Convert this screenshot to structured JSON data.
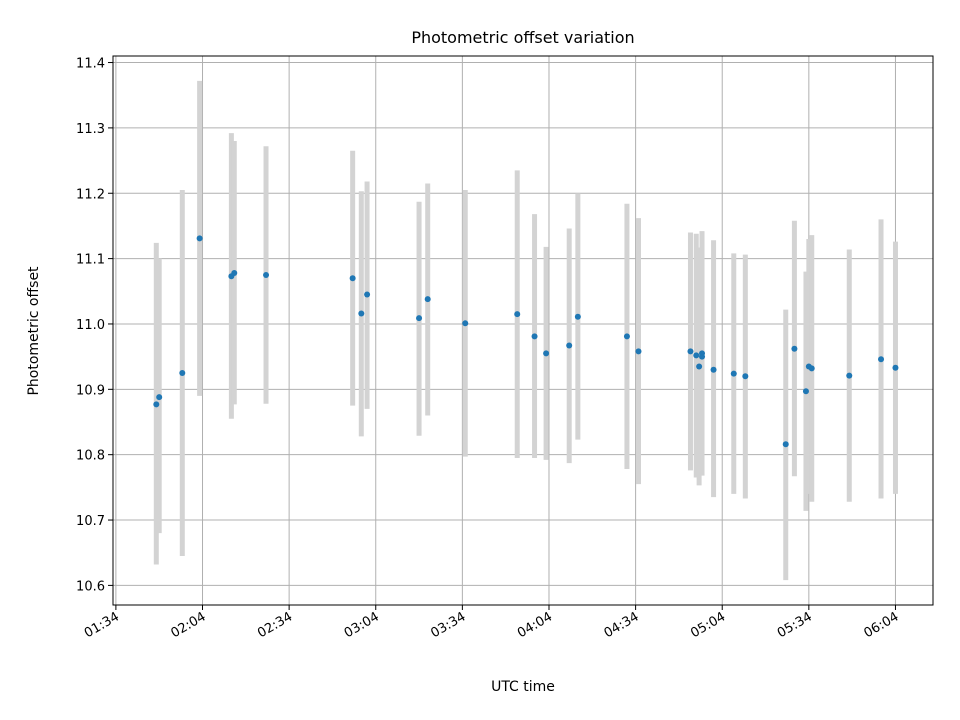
{
  "chart_data": {
    "type": "scatter",
    "title": "Photometric offset variation",
    "xlabel": "UTC time",
    "ylabel": "Photometric offset",
    "x_ticks": [
      "01:34",
      "02:04",
      "02:34",
      "03:04",
      "03:34",
      "04:04",
      "04:34",
      "05:04",
      "05:34",
      "06:04"
    ],
    "y_ticks": [
      10.6,
      10.7,
      10.8,
      10.9,
      11.0,
      11.1,
      11.2,
      11.3,
      11.4
    ],
    "xlim": [
      "01:33",
      "06:17"
    ],
    "ylim": [
      10.57,
      11.41
    ],
    "grid": true,
    "colors": {
      "point": "#1f77b4",
      "errorbar": "#d3d3d3"
    },
    "points": [
      {
        "t": "01:48",
        "y": 10.877,
        "lo": 10.632,
        "hi": 11.124
      },
      {
        "t": "01:49",
        "y": 10.888,
        "lo": 10.68,
        "hi": 11.1
      },
      {
        "t": "01:57",
        "y": 10.925,
        "lo": 10.645,
        "hi": 11.205
      },
      {
        "t": "02:03",
        "y": 11.131,
        "lo": 10.89,
        "hi": 11.372
      },
      {
        "t": "02:14",
        "y": 11.073,
        "lo": 10.855,
        "hi": 11.292
      },
      {
        "t": "02:15",
        "y": 11.078,
        "lo": 10.877,
        "hi": 11.28
      },
      {
        "t": "02:26",
        "y": 11.075,
        "lo": 10.878,
        "hi": 11.272
      },
      {
        "t": "02:56",
        "y": 11.07,
        "lo": 10.875,
        "hi": 11.265
      },
      {
        "t": "02:59",
        "y": 11.016,
        "lo": 10.828,
        "hi": 11.203
      },
      {
        "t": "03:01",
        "y": 11.045,
        "lo": 10.87,
        "hi": 11.218
      },
      {
        "t": "03:19",
        "y": 11.009,
        "lo": 10.829,
        "hi": 11.187
      },
      {
        "t": "03:22",
        "y": 11.038,
        "lo": 10.86,
        "hi": 11.215
      },
      {
        "t": "03:35",
        "y": 11.001,
        "lo": 10.797,
        "hi": 11.205
      },
      {
        "t": "03:53",
        "y": 11.015,
        "lo": 10.795,
        "hi": 11.235
      },
      {
        "t": "03:59",
        "y": 10.981,
        "lo": 10.795,
        "hi": 11.168
      },
      {
        "t": "04:03",
        "y": 10.955,
        "lo": 10.792,
        "hi": 11.118
      },
      {
        "t": "04:11",
        "y": 10.967,
        "lo": 10.787,
        "hi": 11.146
      },
      {
        "t": "04:14",
        "y": 11.011,
        "lo": 10.823,
        "hi": 11.2
      },
      {
        "t": "04:31",
        "y": 10.981,
        "lo": 10.778,
        "hi": 11.184
      },
      {
        "t": "04:35",
        "y": 10.958,
        "lo": 10.755,
        "hi": 11.162
      },
      {
        "t": "04:53",
        "y": 10.958,
        "lo": 10.776,
        "hi": 11.14
      },
      {
        "t": "04:55",
        "y": 10.952,
        "lo": 10.765,
        "hi": 11.138
      },
      {
        "t": "04:56",
        "y": 10.935,
        "lo": 10.753,
        "hi": 11.117
      },
      {
        "t": "04:57",
        "y": 10.95,
        "lo": 10.768,
        "hi": 11.133
      },
      {
        "t": "04:57",
        "y": 10.955,
        "lo": 10.77,
        "hi": 11.142
      },
      {
        "t": "05:01",
        "y": 10.93,
        "lo": 10.735,
        "hi": 11.128
      },
      {
        "t": "05:08",
        "y": 10.924,
        "lo": 10.74,
        "hi": 11.108
      },
      {
        "t": "05:12",
        "y": 10.92,
        "lo": 10.733,
        "hi": 11.106
      },
      {
        "t": "05:26",
        "y": 10.816,
        "lo": 10.608,
        "hi": 11.022
      },
      {
        "t": "05:29",
        "y": 10.962,
        "lo": 10.767,
        "hi": 11.158
      },
      {
        "t": "05:33",
        "y": 10.897,
        "lo": 10.714,
        "hi": 11.08
      },
      {
        "t": "05:34",
        "y": 10.935,
        "lo": 10.74,
        "hi": 11.13
      },
      {
        "t": "05:35",
        "y": 10.932,
        "lo": 10.728,
        "hi": 11.136
      },
      {
        "t": "05:48",
        "y": 10.921,
        "lo": 10.728,
        "hi": 11.114
      },
      {
        "t": "05:59",
        "y": 10.946,
        "lo": 10.733,
        "hi": 11.16
      },
      {
        "t": "06:04",
        "y": 10.933,
        "lo": 10.74,
        "hi": 11.126
      }
    ]
  }
}
